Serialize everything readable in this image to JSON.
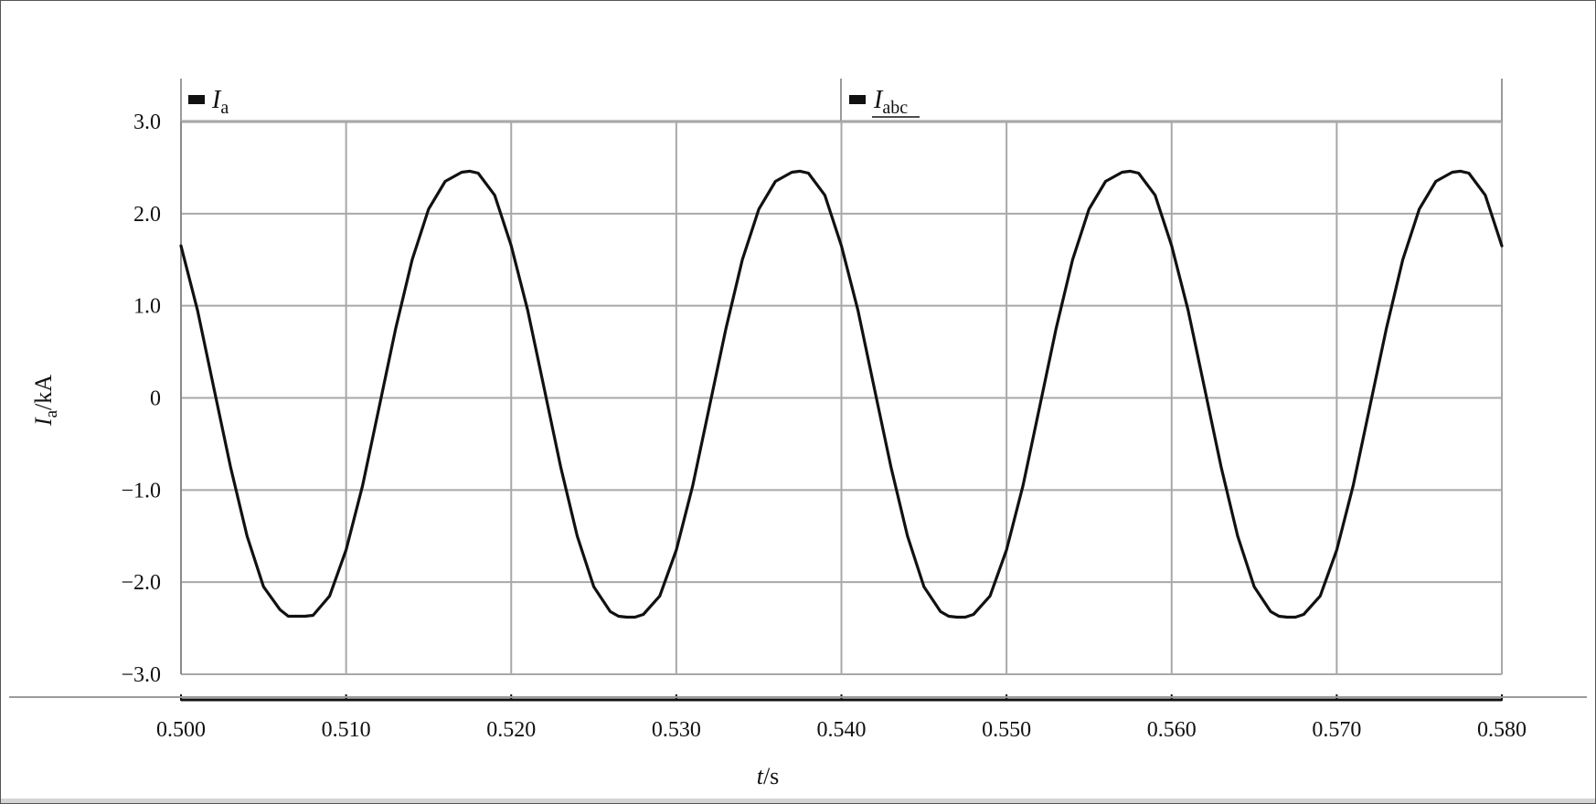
{
  "chart_data": {
    "type": "line",
    "title": "",
    "xlabel": {
      "main": "t",
      "rest": "/s"
    },
    "ylabel": {
      "main": "I",
      "sub": "a",
      "rest": "/kA"
    },
    "xlim": [
      0.5,
      0.58
    ],
    "ylim": [
      -3.0,
      3.0
    ],
    "x_ticks": [
      "0.500",
      "0.510",
      "0.520",
      "0.530",
      "0.540",
      "0.550",
      "0.560",
      "0.570",
      "0.580"
    ],
    "y_ticks": [
      "3.0",
      "2.0",
      "1.0",
      "0",
      "−1.0",
      "−2.0",
      "−3.0"
    ],
    "grid": true,
    "legend": [
      {
        "main": "I",
        "sub": "a"
      },
      {
        "main": "I",
        "sub": "abc"
      }
    ],
    "legend_placement": "top",
    "series": [
      {
        "color": "#111111",
        "x": [
          0.5,
          0.501,
          0.502,
          0.503,
          0.504,
          0.505,
          0.506,
          0.5065,
          0.507,
          0.5075,
          0.508,
          0.509,
          0.51,
          0.511,
          0.512,
          0.513,
          0.514,
          0.515,
          0.516,
          0.517,
          0.5175,
          0.518,
          0.519,
          0.52,
          0.521,
          0.522,
          0.523,
          0.524,
          0.525,
          0.526,
          0.5265,
          0.527,
          0.5275,
          0.528,
          0.529,
          0.53,
          0.531,
          0.532,
          0.533,
          0.534,
          0.535,
          0.536,
          0.537,
          0.5375,
          0.538,
          0.539,
          0.54,
          0.541,
          0.542,
          0.543,
          0.544,
          0.545,
          0.546,
          0.5465,
          0.547,
          0.5475,
          0.548,
          0.549,
          0.55,
          0.551,
          0.552,
          0.553,
          0.554,
          0.555,
          0.556,
          0.557,
          0.5575,
          0.558,
          0.559,
          0.56,
          0.561,
          0.562,
          0.563,
          0.564,
          0.565,
          0.566,
          0.5665,
          0.567,
          0.5675,
          0.568,
          0.569,
          0.57,
          0.571,
          0.572,
          0.573,
          0.574,
          0.575,
          0.576,
          0.577,
          0.5775,
          0.578,
          0.579,
          0.58
        ],
        "y": [
          1.65,
          0.95,
          0.1,
          -0.75,
          -1.5,
          -2.05,
          -2.3,
          -2.37,
          -2.37,
          -2.37,
          -2.36,
          -2.15,
          -1.65,
          -0.95,
          -0.1,
          0.75,
          1.5,
          2.05,
          2.35,
          2.45,
          2.46,
          2.44,
          2.2,
          1.65,
          0.95,
          0.1,
          -0.75,
          -1.5,
          -2.05,
          -2.32,
          -2.37,
          -2.38,
          -2.38,
          -2.35,
          -2.15,
          -1.65,
          -0.95,
          -0.1,
          0.75,
          1.5,
          2.05,
          2.35,
          2.45,
          2.46,
          2.44,
          2.2,
          1.65,
          0.95,
          0.1,
          -0.75,
          -1.5,
          -2.05,
          -2.32,
          -2.37,
          -2.38,
          -2.38,
          -2.35,
          -2.15,
          -1.65,
          -0.95,
          -0.1,
          0.75,
          1.5,
          2.05,
          2.35,
          2.45,
          2.46,
          2.44,
          2.2,
          1.65,
          0.95,
          0.1,
          -0.75,
          -1.5,
          -2.05,
          -2.32,
          -2.37,
          -2.38,
          -2.38,
          -2.35,
          -2.15,
          -1.65,
          -0.95,
          -0.1,
          0.75,
          1.5,
          2.05,
          2.35,
          2.45,
          2.46,
          2.44,
          2.2,
          1.65
        ]
      }
    ]
  }
}
